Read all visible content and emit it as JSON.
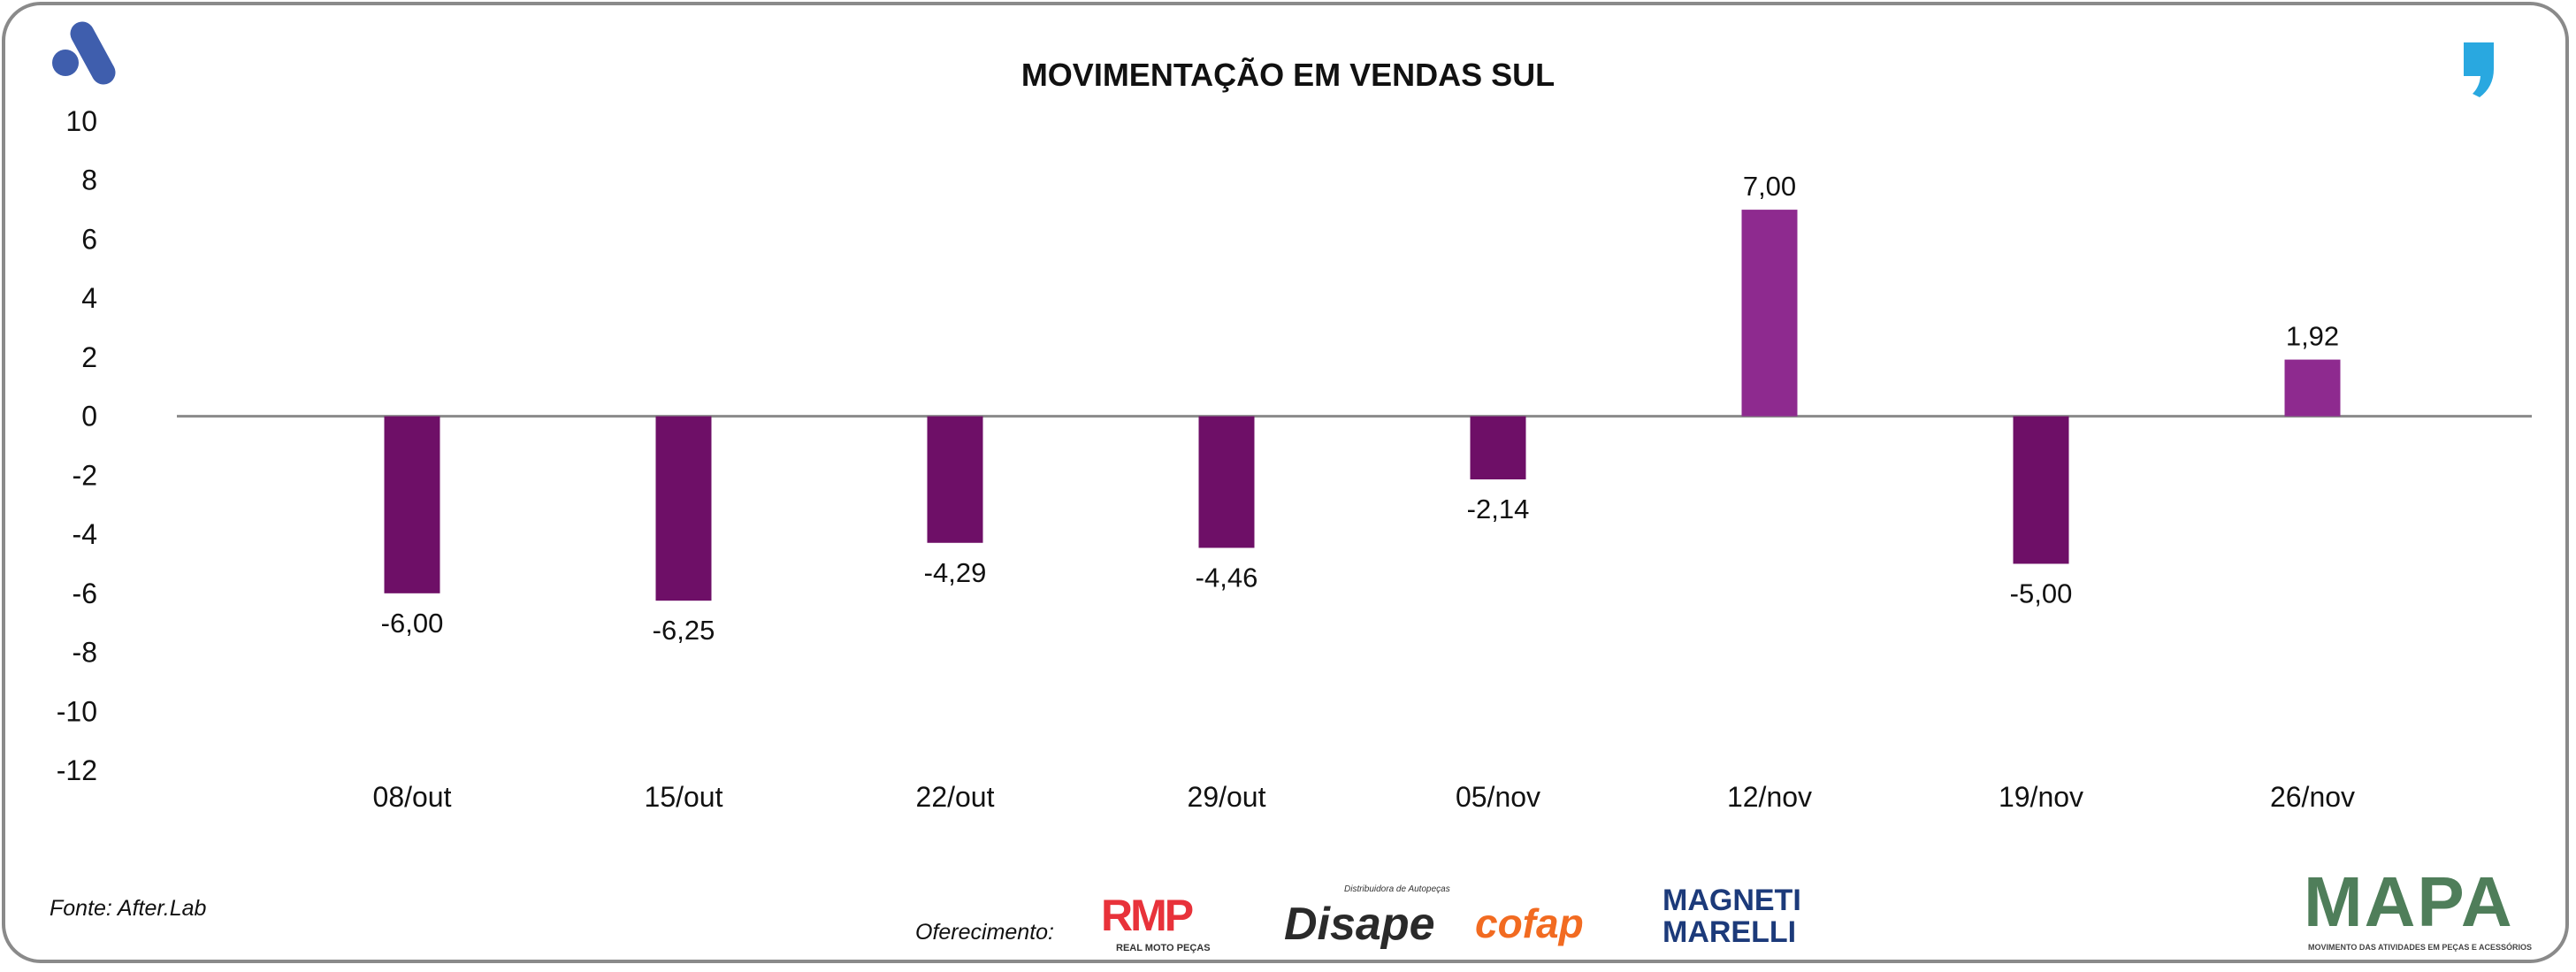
{
  "header": {
    "title": "MOVIMENTAÇÃO EM VENDAS SUL"
  },
  "footer": {
    "source": "Fonte: After.Lab",
    "sponsor_label": "Oferecimento:",
    "sponsors": [
      "RMP",
      "REAL MOTO PEÇAS",
      "Disape",
      "Distribuidora de Autopeças",
      "cofap",
      "MAGNETI MARELLI"
    ],
    "mapa": {
      "name": "MAPA",
      "tagline": "MOVIMENTO DAS ATIVIDADES EM PEÇAS E ACESSÓRIOS"
    }
  },
  "colors": {
    "negative": "#6E0F67",
    "positive": "#8E2A8F",
    "axis": "#8a8a8a",
    "brand_left": "#3F5EAD",
    "brand_right": "#29A8E0"
  },
  "chart_data": {
    "type": "bar",
    "title": "MOVIMENTAÇÃO EM VENDAS SUL",
    "categories": [
      "08/out",
      "15/out",
      "22/out",
      "29/out",
      "05/nov",
      "12/nov",
      "19/nov",
      "26/nov"
    ],
    "values": [
      -6.0,
      -6.25,
      -4.29,
      -4.46,
      -2.14,
      7.0,
      -5.0,
      1.92
    ],
    "data_labels": [
      "-6,00",
      "-6,25",
      "-4,29",
      "-4,46",
      "-2,14",
      "7,00",
      "-5,00",
      "1,92"
    ],
    "ylim": [
      -12,
      10
    ],
    "yticks": [
      "10",
      "8",
      "6",
      "4",
      "2",
      "0",
      "-2",
      "-4",
      "-6",
      "-8",
      "-10",
      "-12"
    ],
    "xlabel": "",
    "ylabel": "",
    "grid": false,
    "legend": "none"
  }
}
